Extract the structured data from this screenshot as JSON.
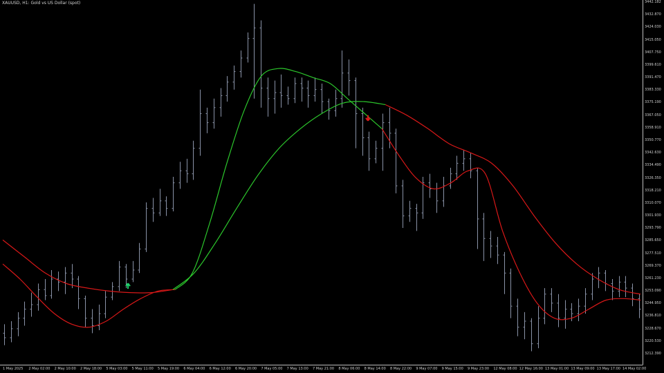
{
  "chart_window": {
    "title": "XAUUSD, H1:  Gold vs US Dollar (spot)",
    "colors": {
      "background": "#000000",
      "bars": "#8a93a8",
      "axis": "#c0c0c0",
      "fast_line_bull": "#2cc72c",
      "fast_line_bear": "#d81818",
      "slow_line_bull": "#2cc72c",
      "slow_line_bear": "#d81818",
      "buy_arrow": "#1fd16a",
      "sell_arrow": "#e01a1a"
    },
    "signals": [
      {
        "type": "buy",
        "icon": "up-arrow-icon",
        "price": 3251.5
      },
      {
        "type": "sell",
        "icon": "down-arrow-icon",
        "price": 3367.0
      }
    ]
  },
  "chart_data": {
    "type": "candlestick",
    "symbol": "XAUUSD",
    "timeframe": "H1",
    "description": "Gold vs US Dollar (spot)",
    "ylim": [
      3208.4,
      3442.2
    ],
    "price_ticks": [
      "3442.182",
      "3432.870",
      "3424.030",
      "3415.050",
      "3407.750",
      "3399.610",
      "3391.470",
      "3383.330",
      "3375.190",
      "3367.050",
      "3358.910",
      "3350.770",
      "3342.630",
      "3334.490",
      "3326.350",
      "3318.210",
      "3310.070",
      "3301.930",
      "3293.790",
      "3285.650",
      "3277.510",
      "3269.370",
      "3261.230",
      "3253.090",
      "3244.950",
      "3236.810",
      "3228.670",
      "3220.530",
      "3212.390"
    ],
    "time_ticks": [
      "1 May 2025",
      "2 May 02:00",
      "2 May 10:00",
      "2 May 18:00",
      "5 May 03:00",
      "5 May 11:00",
      "5 May 19:00",
      "6 May 04:00",
      "6 May 12:00",
      "6 May 20:00",
      "7 May 05:00",
      "7 May 13:00",
      "7 May 21:00",
      "8 May 06:00",
      "8 May 14:00",
      "8 May 22:00",
      "9 May 07:00",
      "9 May 15:00",
      "9 May 23:00",
      "12 May 08:00",
      "12 May 16:00",
      "13 May 01:00",
      "13 May 09:00",
      "13 May 17:00",
      "14 May 02:00"
    ],
    "fast_line": [
      3268,
      3258,
      3246,
      3235,
      3228,
      3226,
      3230,
      3238,
      3245,
      3250,
      3251,
      3262,
      3295,
      3335,
      3370,
      3393,
      3398,
      3396,
      3392,
      3388,
      3378,
      3368,
      3358,
      3340,
      3325,
      3318,
      3322,
      3330,
      3328,
      3290,
      3262,
      3242,
      3232,
      3232,
      3238,
      3244,
      3245,
      3244
    ],
    "slow_line": [
      3284,
      3273,
      3262,
      3255,
      3252,
      3250,
      3249,
      3249,
      3251,
      3262,
      3282,
      3305,
      3327,
      3345,
      3358,
      3368,
      3375,
      3376,
      3374,
      3367,
      3358,
      3348,
      3342,
      3335,
      3320,
      3300,
      3282,
      3268,
      3258,
      3251,
      3248
    ],
    "candles": [
      [
        3222,
        3219,
        3228,
        3214
      ],
      [
        3219,
        3225,
        3230,
        3216
      ],
      [
        3225,
        3232,
        3236,
        3220
      ],
      [
        3232,
        3238,
        3243,
        3227
      ],
      [
        3238,
        3241,
        3249,
        3233
      ],
      [
        3241,
        3251,
        3255,
        3237
      ],
      [
        3251,
        3247,
        3258,
        3244
      ],
      [
        3247,
        3258,
        3264,
        3245
      ],
      [
        3258,
        3256,
        3263,
        3250
      ],
      [
        3256,
        3262,
        3266,
        3248
      ],
      [
        3262,
        3258,
        3268,
        3252
      ],
      [
        3258,
        3245,
        3260,
        3238
      ],
      [
        3245,
        3232,
        3247,
        3226
      ],
      [
        3232,
        3227,
        3238,
        3222
      ],
      [
        3227,
        3235,
        3241,
        3224
      ],
      [
        3235,
        3246,
        3250,
        3232
      ],
      [
        3246,
        3253,
        3256,
        3244
      ],
      [
        3253,
        3266,
        3270,
        3250
      ],
      [
        3266,
        3258,
        3268,
        3252
      ],
      [
        3258,
        3264,
        3270,
        3256
      ],
      [
        3264,
        3278,
        3282,
        3262
      ],
      [
        3278,
        3305,
        3309,
        3276
      ],
      [
        3305,
        3302,
        3312,
        3296
      ],
      [
        3302,
        3310,
        3318,
        3300
      ],
      [
        3310,
        3305,
        3313,
        3300
      ],
      [
        3305,
        3322,
        3326,
        3303
      ],
      [
        3322,
        3330,
        3336,
        3318
      ],
      [
        3330,
        3328,
        3338,
        3322
      ],
      [
        3328,
        3345,
        3350,
        3324
      ],
      [
        3345,
        3368,
        3384,
        3340
      ],
      [
        3368,
        3362,
        3372,
        3355
      ],
      [
        3362,
        3372,
        3378,
        3358
      ],
      [
        3372,
        3380,
        3385,
        3366
      ],
      [
        3380,
        3389,
        3393,
        3376
      ],
      [
        3389,
        3396,
        3400,
        3384
      ],
      [
        3396,
        3405,
        3410,
        3392
      ],
      [
        3405,
        3418,
        3422,
        3402
      ],
      [
        3418,
        3425,
        3441,
        3378
      ],
      [
        3425,
        3385,
        3430,
        3372
      ],
      [
        3385,
        3378,
        3392,
        3366
      ],
      [
        3378,
        3382,
        3390,
        3368
      ],
      [
        3382,
        3380,
        3394,
        3372
      ],
      [
        3380,
        3378,
        3386,
        3374
      ],
      [
        3378,
        3388,
        3392,
        3375
      ],
      [
        3388,
        3385,
        3392,
        3376
      ],
      [
        3385,
        3380,
        3390,
        3372
      ],
      [
        3380,
        3384,
        3392,
        3376
      ],
      [
        3384,
        3376,
        3388,
        3368
      ],
      [
        3376,
        3370,
        3378,
        3364
      ],
      [
        3370,
        3378,
        3384,
        3366
      ],
      [
        3378,
        3395,
        3410,
        3372
      ],
      [
        3395,
        3390,
        3404,
        3380
      ],
      [
        3390,
        3368,
        3392,
        3345
      ],
      [
        3368,
        3352,
        3372,
        3340
      ],
      [
        3352,
        3338,
        3356,
        3330
      ],
      [
        3338,
        3345,
        3350,
        3335
      ],
      [
        3345,
        3362,
        3368,
        3330
      ],
      [
        3362,
        3355,
        3372,
        3345
      ],
      [
        3355,
        3320,
        3358,
        3315
      ],
      [
        3320,
        3300,
        3324,
        3292
      ],
      [
        3300,
        3305,
        3310,
        3296
      ],
      [
        3305,
        3302,
        3308,
        3290
      ],
      [
        3302,
        3322,
        3326,
        3298
      ],
      [
        3322,
        3318,
        3328,
        3312
      ],
      [
        3318,
        3310,
        3322,
        3302
      ],
      [
        3310,
        3320,
        3326,
        3306
      ],
      [
        3320,
        3328,
        3332,
        3318
      ],
      [
        3328,
        3335,
        3340,
        3324
      ],
      [
        3335,
        3338,
        3344,
        3330
      ],
      [
        3338,
        3330,
        3342,
        3325
      ],
      [
        3330,
        3298,
        3332,
        3278
      ],
      [
        3298,
        3285,
        3302,
        3270
      ],
      [
        3285,
        3280,
        3290,
        3272
      ],
      [
        3280,
        3274,
        3286,
        3268
      ],
      [
        3274,
        3262,
        3276,
        3248
      ],
      [
        3262,
        3240,
        3265,
        3232
      ],
      [
        3240,
        3226,
        3245,
        3220
      ],
      [
        3226,
        3230,
        3236,
        3218
      ],
      [
        3230,
        3215,
        3232,
        3210
      ],
      [
        3215,
        3232,
        3240,
        3212
      ],
      [
        3232,
        3248,
        3252,
        3228
      ],
      [
        3248,
        3242,
        3252,
        3236
      ],
      [
        3242,
        3232,
        3248,
        3226
      ],
      [
        3232,
        3238,
        3244,
        3225
      ],
      [
        3238,
        3235,
        3242,
        3230
      ],
      [
        3235,
        3240,
        3245,
        3230
      ],
      [
        3240,
        3248,
        3252,
        3235
      ],
      [
        3248,
        3258,
        3262,
        3244
      ],
      [
        3258,
        3262,
        3266,
        3252
      ],
      [
        3262,
        3255,
        3264,
        3250
      ],
      [
        3255,
        3250,
        3258,
        3244
      ],
      [
        3250,
        3256,
        3260,
        3246
      ],
      [
        3256,
        3252,
        3260,
        3246
      ],
      [
        3252,
        3245,
        3255,
        3240
      ],
      [
        3245,
        3238,
        3248,
        3232
      ]
    ]
  }
}
